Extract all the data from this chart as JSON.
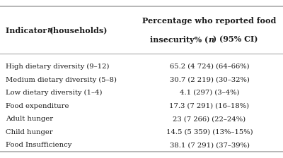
{
  "rows": [
    [
      "High dietary diversity (9–12)",
      "65.2 (4 724) (64–66%)"
    ],
    [
      "Medium dietary diversity (5–8)",
      "30.7 (2 219) (30–32%)"
    ],
    [
      "Low dietary diversity (1–4)",
      "4.1 (297) (3–4%)"
    ],
    [
      "Food expenditure",
      "17.3 (7 291) (16–18%)"
    ],
    [
      "Adult hunger",
      "23 (7 266) (22–24%)"
    ],
    [
      "Child hunger",
      "14.5 (5 359) (13%–15%)"
    ],
    [
      "Food Insufficiency",
      "38.1 (7 291) (37–39%)"
    ]
  ],
  "background_color": "#ffffff",
  "border_color": "#aaaaaa",
  "text_color": "#1a1a1a",
  "font_size": 7.2,
  "header_font_size": 8.0,
  "fig_width": 4.0,
  "fig_height": 2.24
}
